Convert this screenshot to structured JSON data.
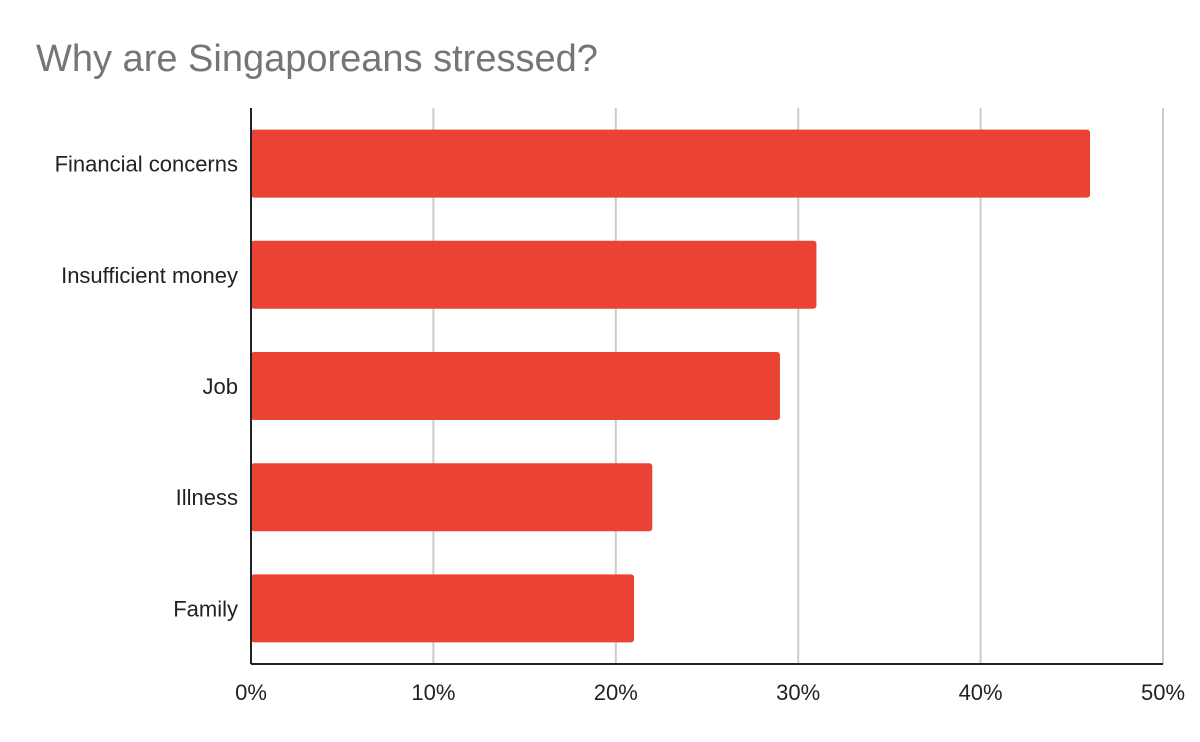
{
  "chart_data": {
    "type": "bar",
    "orientation": "horizontal",
    "title": "Why are Singaporeans stressed?",
    "categories": [
      "Financial concerns",
      "Insufficient money",
      "Job",
      "Illness",
      "Family"
    ],
    "values": [
      46,
      31,
      29,
      22,
      21
    ],
    "unit": "%",
    "xlim": [
      0,
      50
    ],
    "xticks": [
      0,
      10,
      20,
      30,
      40,
      50
    ],
    "xtick_labels": [
      "0%",
      "10%",
      "20%",
      "30%",
      "40%",
      "50%"
    ],
    "grid": true,
    "legend": "none",
    "bar_color": "#ea4335",
    "grid_color": "#cccccc",
    "axis_color": "#222222"
  }
}
